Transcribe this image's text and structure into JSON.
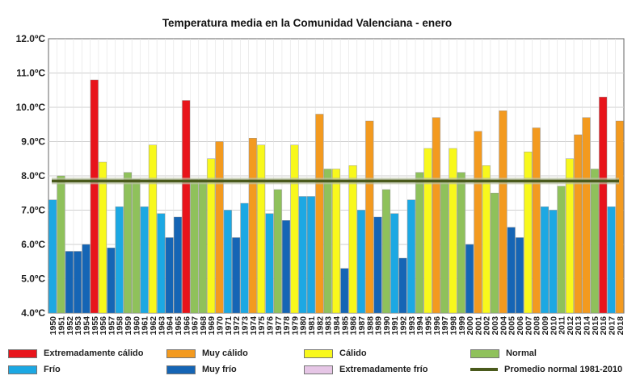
{
  "chart_data": {
    "type": "bar",
    "title": "Temperatura  media  en  la  Comunidad  Valenciana  -  enero",
    "xlabel": "",
    "ylabel": "",
    "ylim": [
      4.0,
      12.0
    ],
    "yticks": [
      "4.0ºC",
      "5.0ºC",
      "6.0ºC",
      "7.0ºC",
      "8.0ºC",
      "9.0ºC",
      "10.0ºC",
      "11.0ºC",
      "12.0ºC"
    ],
    "categories": [
      "1950",
      "1951",
      "1952",
      "1953",
      "1954",
      "1955",
      "1956",
      "1957",
      "1958",
      "1959",
      "1960",
      "1961",
      "1962",
      "1963",
      "1964",
      "1965",
      "1966",
      "1967",
      "1968",
      "1969",
      "1970",
      "1971",
      "1972",
      "1973",
      "1974",
      "1975",
      "1976",
      "1977",
      "1978",
      "1979",
      "1980",
      "1981",
      "1982",
      "1983",
      "1984",
      "1985",
      "1986",
      "1987",
      "1988",
      "1989",
      "1990",
      "1991",
      "1992",
      "1993",
      "1994",
      "1995",
      "1996",
      "1997",
      "1998",
      "1999",
      "2000",
      "2001",
      "2002",
      "2003",
      "2004",
      "2005",
      "2006",
      "2007",
      "2008",
      "2009",
      "2010",
      "2011",
      "2012",
      "2013",
      "2014",
      "2015",
      "2016",
      "2017",
      "2018"
    ],
    "values": [
      7.3,
      8.0,
      5.8,
      5.8,
      6.0,
      10.8,
      8.4,
      5.9,
      7.1,
      8.1,
      7.9,
      7.1,
      8.9,
      6.9,
      6.2,
      6.8,
      10.2,
      7.9,
      7.9,
      8.5,
      9.0,
      7.0,
      6.2,
      7.2,
      9.1,
      8.9,
      6.9,
      7.6,
      6.7,
      8.9,
      7.4,
      7.4,
      9.8,
      8.2,
      8.2,
      5.3,
      8.3,
      7.0,
      9.6,
      6.8,
      7.6,
      6.9,
      5.6,
      7.3,
      8.1,
      8.8,
      9.7,
      7.9,
      8.8,
      8.1,
      6.0,
      9.3,
      8.3,
      7.5,
      9.9,
      6.5,
      6.2,
      8.7,
      9.4,
      7.1,
      7.0,
      7.7,
      8.5,
      9.2,
      9.7,
      8.2,
      10.3,
      7.1,
      9.6
    ],
    "classes": [
      "frio",
      "normal",
      "muy_frio",
      "muy_frio",
      "muy_frio",
      "extremadamente_calido",
      "calido",
      "muy_frio",
      "frio",
      "normal",
      "normal",
      "frio",
      "calido",
      "frio",
      "muy_frio",
      "muy_frio",
      "extremadamente_calido",
      "normal",
      "normal",
      "calido",
      "muy_calido",
      "frio",
      "muy_frio",
      "frio",
      "muy_calido",
      "calido",
      "frio",
      "normal",
      "muy_frio",
      "calido",
      "frio",
      "frio",
      "muy_calido",
      "normal",
      "calido",
      "muy_frio",
      "calido",
      "frio",
      "muy_calido",
      "muy_frio",
      "normal",
      "frio",
      "muy_frio",
      "frio",
      "normal",
      "calido",
      "muy_calido",
      "normal",
      "calido",
      "normal",
      "muy_frio",
      "muy_calido",
      "calido",
      "normal",
      "muy_calido",
      "muy_frio",
      "muy_frio",
      "calido",
      "muy_calido",
      "frio",
      "frio",
      "normal",
      "calido",
      "muy_calido",
      "muy_calido",
      "normal",
      "extremadamente_calido",
      "frio",
      "muy_calido"
    ],
    "reference_line": {
      "name": "Promedio normal 1981-2010",
      "value": 7.85
    },
    "legend_position": "bottom",
    "grid": true
  },
  "colors": {
    "extremadamente_calido": "#e8141b",
    "muy_calido": "#f39a1f",
    "calido": "#f8f81c",
    "normal": "#8fc15b",
    "frio": "#1ca8e3",
    "muy_frio": "#1565b5",
    "extremadamente_frio": "#e6c6e6",
    "promedio": "#4a5a1c"
  },
  "legend": {
    "extremadamente_calido": "Extremadamente cálido",
    "muy_calido": "Muy cálido",
    "calido": "Cálido",
    "normal": "Normal",
    "frio": "Frío",
    "muy_frio": "Muy frío",
    "extremadamente_frio": "Extremadamente frío",
    "promedio": "Promedio normal 1981-2010"
  }
}
